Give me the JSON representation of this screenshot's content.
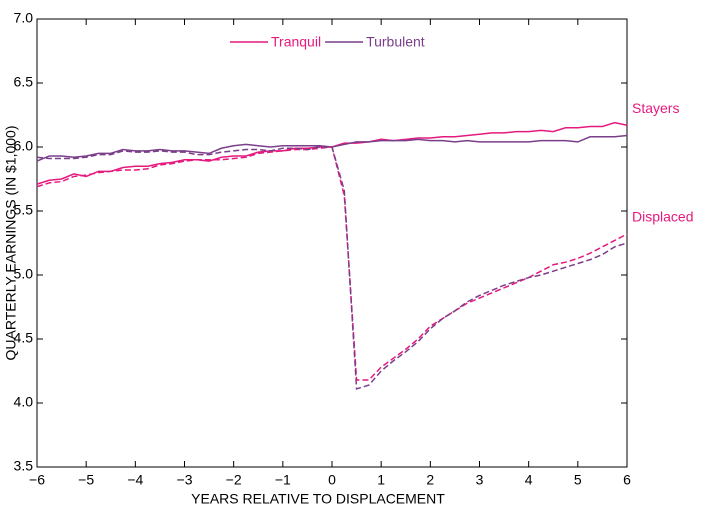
{
  "chart_data": {
    "type": "line",
    "xlabel": "YEARS RELATIVE TO DISPLACEMENT",
    "ylabel": "QUARTERLY EARNINGS (IN $1,000)",
    "legend": [
      {
        "name": "Tranquil",
        "color": "#e6197e"
      },
      {
        "name": "Turbulent",
        "color": "#7b3f8a"
      }
    ],
    "annotations": [
      "Stayers",
      "Displaced"
    ],
    "x": [
      -6,
      -5.75,
      -5.5,
      -5.25,
      -5,
      -4.75,
      -4.5,
      -4.25,
      -4,
      -3.75,
      -3.5,
      -3.25,
      -3,
      -2.75,
      -2.5,
      -2.25,
      -2,
      -1.75,
      -1.5,
      -1.25,
      -1,
      -0.75,
      -0.5,
      -0.25,
      0,
      0.25,
      0.5,
      0.75,
      1,
      1.25,
      1.5,
      1.75,
      2,
      2.25,
      2.5,
      2.75,
      3,
      3.25,
      3.5,
      3.75,
      4,
      4.25,
      4.5,
      4.75,
      5,
      5.25,
      5.5,
      5.75,
      6
    ],
    "series": [
      {
        "color": "#e6197e",
        "dashed": false,
        "values": [
          5.71,
          5.74,
          5.75,
          5.79,
          5.77,
          5.81,
          5.81,
          5.84,
          5.85,
          5.85,
          5.87,
          5.88,
          5.9,
          5.9,
          5.89,
          5.92,
          5.93,
          5.93,
          5.96,
          5.97,
          5.97,
          5.99,
          5.99,
          6.0,
          6.0,
          6.03,
          6.03,
          6.04,
          6.06,
          6.05,
          6.06,
          6.07,
          6.07,
          6.08,
          6.08,
          6.09,
          6.1,
          6.11,
          6.11,
          6.12,
          6.12,
          6.13,
          6.12,
          6.15,
          6.15,
          6.16,
          6.16,
          6.19,
          6.17
        ]
      },
      {
        "color": "#7b3f8a",
        "dashed": false,
        "values": [
          5.89,
          5.93,
          5.93,
          5.92,
          5.93,
          5.95,
          5.95,
          5.98,
          5.97,
          5.97,
          5.98,
          5.97,
          5.97,
          5.96,
          5.95,
          5.99,
          6.01,
          6.02,
          6.01,
          6.0,
          6.01,
          6.01,
          6.01,
          6.01,
          6.0,
          6.02,
          6.04,
          6.04,
          6.05,
          6.05,
          6.05,
          6.06,
          6.05,
          6.05,
          6.04,
          6.05,
          6.04,
          6.04,
          6.04,
          6.04,
          6.04,
          6.05,
          6.05,
          6.05,
          6.04,
          6.08,
          6.08,
          6.08,
          6.09
        ]
      },
      {
        "color": "#e6197e",
        "dashed": true,
        "values": [
          5.69,
          5.72,
          5.73,
          5.77,
          5.78,
          5.8,
          5.81,
          5.82,
          5.82,
          5.83,
          5.86,
          5.87,
          5.89,
          5.9,
          5.9,
          5.9,
          5.91,
          5.92,
          5.95,
          5.96,
          5.97,
          5.98,
          5.98,
          5.99,
          6.0,
          5.62,
          4.18,
          4.18,
          4.28,
          4.35,
          4.42,
          4.5,
          4.6,
          4.66,
          4.72,
          4.78,
          4.82,
          4.86,
          4.9,
          4.94,
          4.98,
          5.03,
          5.08,
          5.1,
          5.13,
          5.17,
          5.22,
          5.27,
          5.32
        ]
      },
      {
        "color": "#7b3f8a",
        "dashed": true,
        "values": [
          5.92,
          5.91,
          5.91,
          5.91,
          5.92,
          5.94,
          5.94,
          5.97,
          5.96,
          5.96,
          5.97,
          5.96,
          5.96,
          5.94,
          5.94,
          5.96,
          5.97,
          5.98,
          5.98,
          5.97,
          5.99,
          5.99,
          5.98,
          6.0,
          6.0,
          5.66,
          4.11,
          4.14,
          4.25,
          4.33,
          4.4,
          4.48,
          4.58,
          4.66,
          4.72,
          4.79,
          4.84,
          4.88,
          4.92,
          4.95,
          4.98,
          5.0,
          5.03,
          5.06,
          5.09,
          5.12,
          5.16,
          5.22,
          5.25
        ]
      }
    ],
    "xlim": [
      -6,
      6
    ],
    "xticks": [
      {
        "value": -6,
        "label": "−6"
      },
      {
        "value": -5,
        "label": "−5"
      },
      {
        "value": -4,
        "label": "−4"
      },
      {
        "value": -3,
        "label": "−3"
      },
      {
        "value": -2,
        "label": "−2"
      },
      {
        "value": -1,
        "label": "−1"
      },
      0,
      1,
      2,
      3,
      4,
      5,
      6
    ],
    "ylim": [
      3.5,
      7
    ],
    "yticks": [
      3.5,
      {
        "value": 4,
        "label": "4.0"
      },
      4.5,
      {
        "value": 5,
        "label": "5.0"
      },
      5.5,
      {
        "value": 6,
        "label": "6.0"
      },
      6.5,
      {
        "value": 7,
        "label": "7.0"
      }
    ],
    "grid": false
  }
}
